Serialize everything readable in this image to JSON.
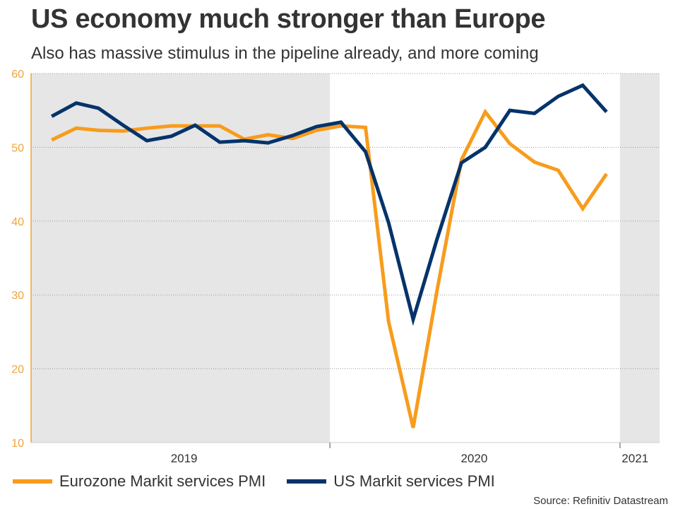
{
  "title": "US economy much stronger than Europe",
  "subtitle": "Also has massive stimulus in the pipeline already, and more coming",
  "source": "Source: Refinitiv Datastream",
  "colors": {
    "eurozone": "#F89C1C",
    "us": "#05336B",
    "shade": "#E6E6E6",
    "axis_left": "#F0A43A"
  },
  "chart_data": {
    "type": "line",
    "title": "US economy much stronger than Europe",
    "subtitle": "Also has massive stimulus in the pipeline already, and more coming",
    "x": [
      "2019-01",
      "2019-02",
      "2019-03",
      "2019-04",
      "2019-05",
      "2019-06",
      "2019-07",
      "2019-08",
      "2019-09",
      "2019-10",
      "2019-11",
      "2019-12",
      "2020-01",
      "2020-02",
      "2020-03",
      "2020-04",
      "2020-05",
      "2020-06",
      "2020-07",
      "2020-08",
      "2020-09",
      "2020-10",
      "2020-11",
      "2020-12"
    ],
    "xlim": [
      "2018-12-20",
      "2021-02-20"
    ],
    "ylim": [
      10,
      60
    ],
    "yticks": [
      10,
      20,
      30,
      40,
      50,
      60
    ],
    "year_labels": [
      {
        "label": "2019",
        "date": "2019-07-01"
      },
      {
        "label": "2020",
        "date": "2020-07-01"
      },
      {
        "label": "2021",
        "date": "2021-01-20"
      }
    ],
    "year_boundaries": [
      "2020-01-01",
      "2021-01-01"
    ],
    "shaded_years": [
      "2019",
      "2021"
    ],
    "grid": true,
    "legend_position": "bottom-left",
    "series": [
      {
        "name": "Eurozone Markit services PMI",
        "color": "#F89C1C",
        "values": [
          51.0,
          52.6,
          52.3,
          52.2,
          52.6,
          52.9,
          52.9,
          52.9,
          51.1,
          51.7,
          51.2,
          52.3,
          52.9,
          52.7,
          26.4,
          12.0,
          30.5,
          48.3,
          54.8,
          50.5,
          48.0,
          46.9,
          41.7,
          46.4
        ]
      },
      {
        "name": "US Markit services PMI",
        "color": "#05336B",
        "values": [
          54.2,
          56.0,
          55.3,
          53.0,
          50.9,
          51.5,
          53.0,
          50.7,
          50.9,
          50.6,
          51.6,
          52.8,
          53.4,
          49.4,
          39.8,
          26.7,
          37.5,
          47.9,
          50.0,
          55.0,
          54.6,
          56.9,
          58.4,
          54.8
        ]
      }
    ]
  }
}
